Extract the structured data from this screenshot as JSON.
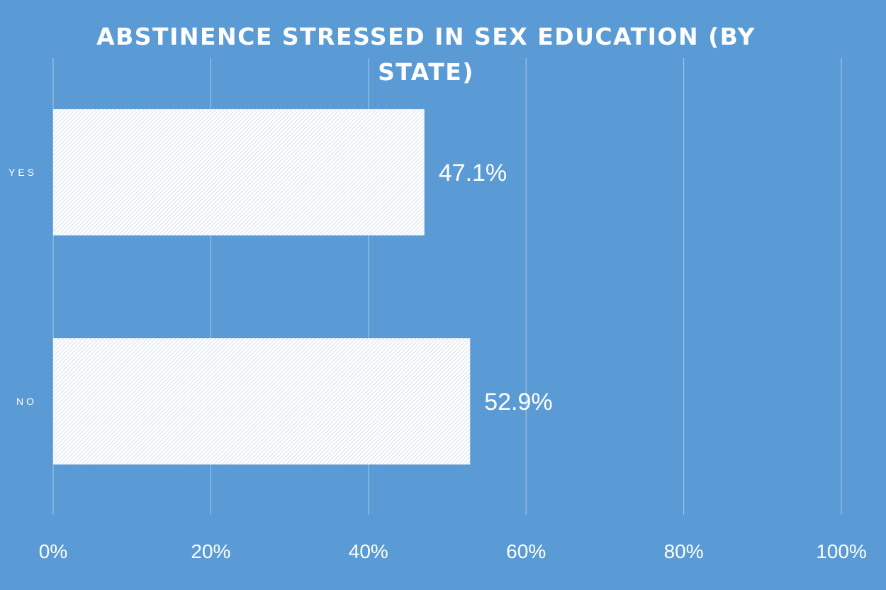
{
  "chart_data": {
    "type": "bar",
    "orientation": "horizontal",
    "title": "ABSTINENCE STRESSED IN SEX EDUCATION (BY STATE)",
    "title_lines": [
      "ABSTINENCE STRESSED IN SEX EDUCATION (BY",
      "STATE)"
    ],
    "categories": [
      "YES",
      "NO"
    ],
    "values": [
      0.471,
      0.529
    ],
    "data_labels": [
      "47.1%",
      "52.9%"
    ],
    "xlim": [
      0,
      1
    ],
    "x_ticks": [
      0,
      0.2,
      0.4,
      0.6,
      0.8,
      1.0
    ],
    "x_tick_labels": [
      "0%",
      "20%",
      "40%",
      "60%",
      "80%",
      "100%"
    ],
    "xlabel": "",
    "ylabel": "",
    "grid": true,
    "legend": "none",
    "colors": {
      "background": "#5b9bd5",
      "bar_fill": "#ffffff",
      "bar_pattern": "#c9d7e6",
      "text": "#ffffff",
      "grid": "#a9c8e8"
    }
  }
}
